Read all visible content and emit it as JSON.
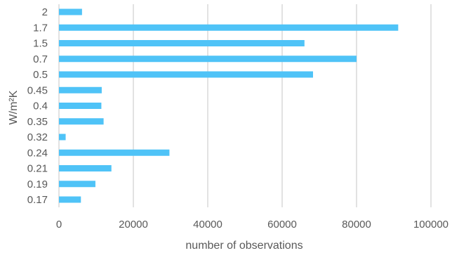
{
  "chart_data": {
    "type": "bar",
    "orientation": "horizontal",
    "title": "",
    "xlabel": "number of observations",
    "ylabel": "W/m²K",
    "categories": [
      "2",
      "1.7",
      "1.5",
      "0.7",
      "0.5",
      "0.45",
      "0.4",
      "0.35",
      "0.32",
      "0.24",
      "0.21",
      "0.19",
      "0.17"
    ],
    "values": [
      6200,
      91200,
      66000,
      80000,
      68300,
      11500,
      11400,
      12000,
      1800,
      29700,
      14100,
      9800,
      5900
    ],
    "xlim": [
      0,
      100000
    ],
    "xticks": [
      "0",
      "20000",
      "40000",
      "60000",
      "80000",
      "100000"
    ],
    "bar_color": "#4fc3f7",
    "grid": "vertical",
    "legend": "none"
  }
}
